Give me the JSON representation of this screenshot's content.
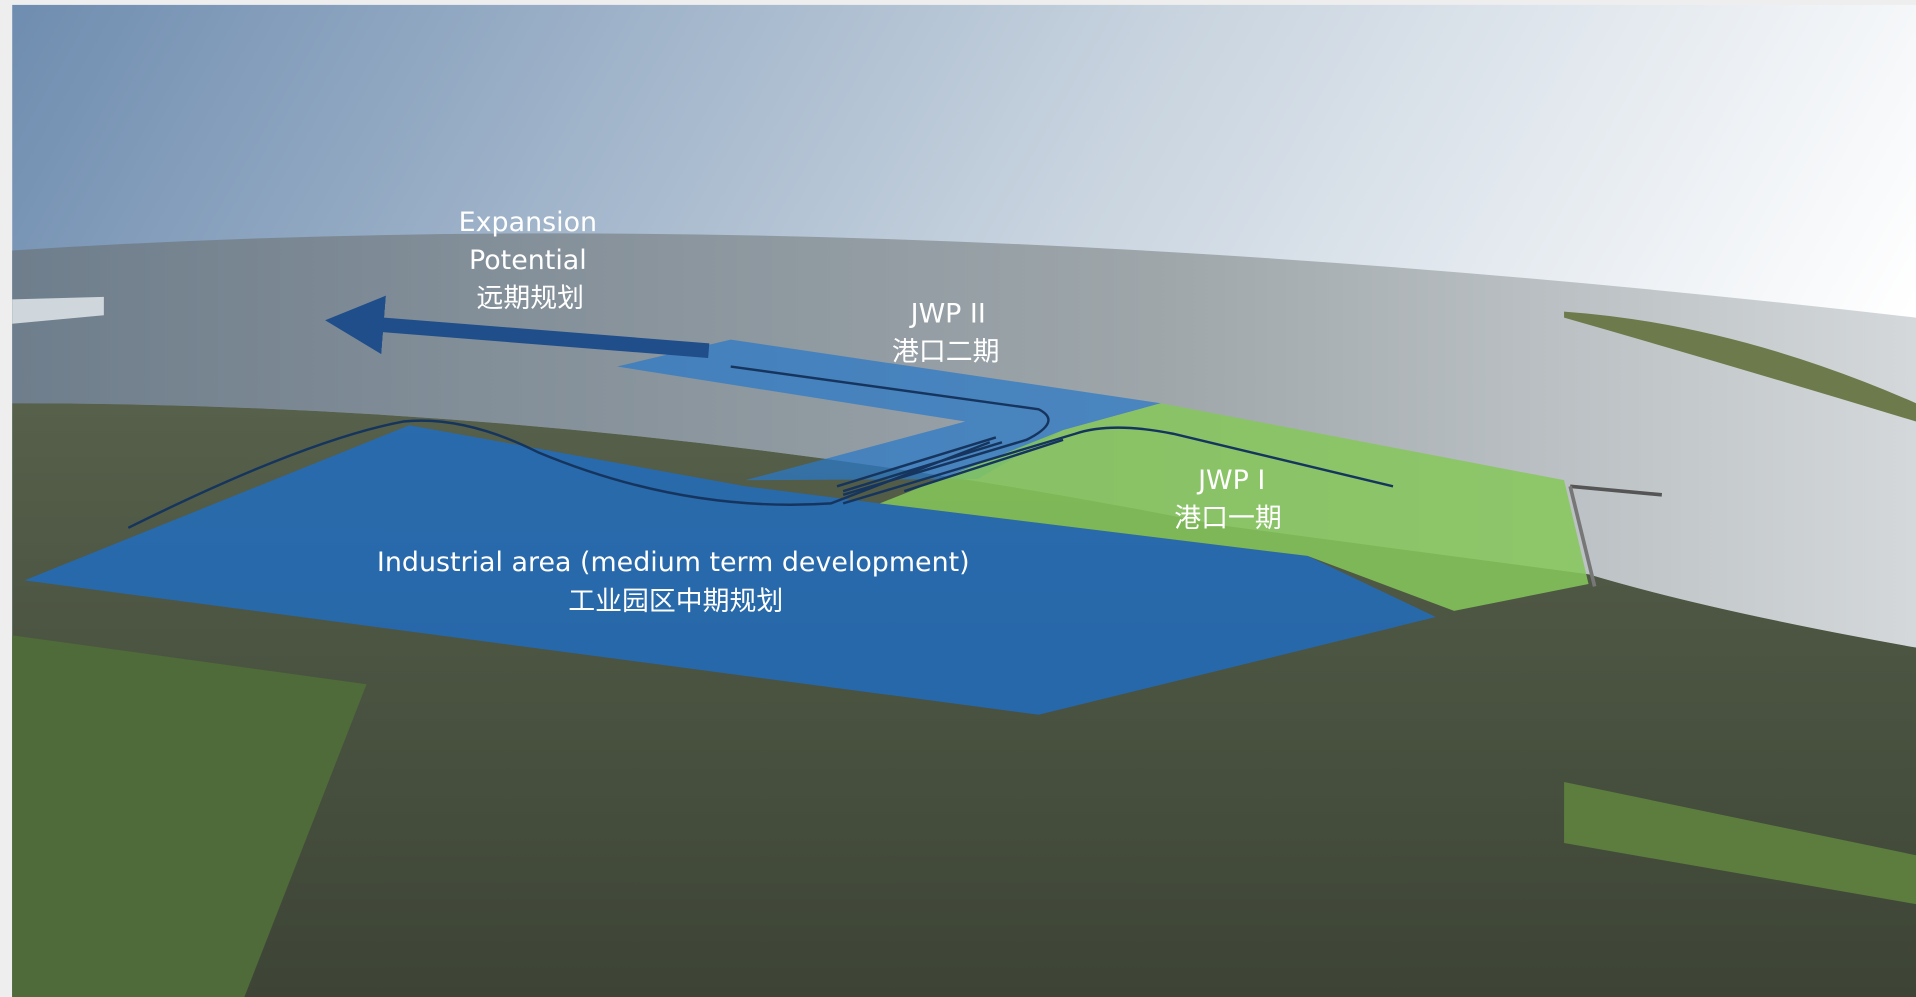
{
  "annotations": {
    "expansion": {
      "en_line1": "Expansion",
      "en_line2": "Potential",
      "zh": "远期规划"
    },
    "jwp2": {
      "en": "JWP II",
      "zh": "港口二期"
    },
    "jwp1": {
      "en": "JWP I",
      "zh": "港口一期"
    },
    "industrial": {
      "en": "Industrial area (medium term development)",
      "zh": "工业园区中期规划"
    }
  }
}
